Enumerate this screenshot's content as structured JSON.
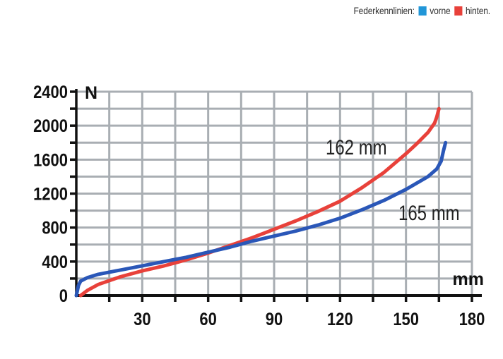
{
  "legend": {
    "title": "Federkennlinien:",
    "items": [
      {
        "label": "vorne",
        "color": "#2196d8"
      },
      {
        "label": "hinten.",
        "color": "#e8413a"
      }
    ]
  },
  "chart_data": {
    "type": "line",
    "title": "",
    "xlabel": "mm",
    "ylabel": "N",
    "xlim": [
      0,
      180
    ],
    "ylim": [
      0,
      2400
    ],
    "xticks": [
      30,
      60,
      90,
      120,
      150,
      180
    ],
    "yticks": [
      0,
      400,
      800,
      1200,
      1600,
      2000,
      2400
    ],
    "grid": true,
    "series": [
      {
        "color": "#2a57b8",
        "annotation": "165 mm",
        "x": [
          0,
          0.5,
          1,
          2,
          5,
          10,
          20,
          30,
          40,
          50,
          60,
          70,
          80,
          90,
          100,
          110,
          120,
          130,
          140,
          150,
          160,
          164,
          166,
          167,
          168
        ],
        "y": [
          0,
          60,
          120,
          170,
          210,
          250,
          300,
          350,
          400,
          450,
          510,
          570,
          640,
          700,
          760,
          830,
          910,
          1010,
          1120,
          1250,
          1400,
          1490,
          1580,
          1700,
          1800
        ]
      },
      {
        "color": "#e8413a",
        "annotation": "162 mm",
        "x": [
          2,
          5,
          10,
          20,
          30,
          40,
          50,
          60,
          70,
          80,
          90,
          100,
          110,
          120,
          130,
          140,
          150,
          155,
          160,
          163,
          164,
          165
        ],
        "y": [
          0,
          60,
          130,
          220,
          290,
          350,
          420,
          500,
          590,
          680,
          780,
          880,
          990,
          1110,
          1270,
          1450,
          1670,
          1790,
          1920,
          2030,
          2100,
          2200
        ]
      }
    ]
  }
}
